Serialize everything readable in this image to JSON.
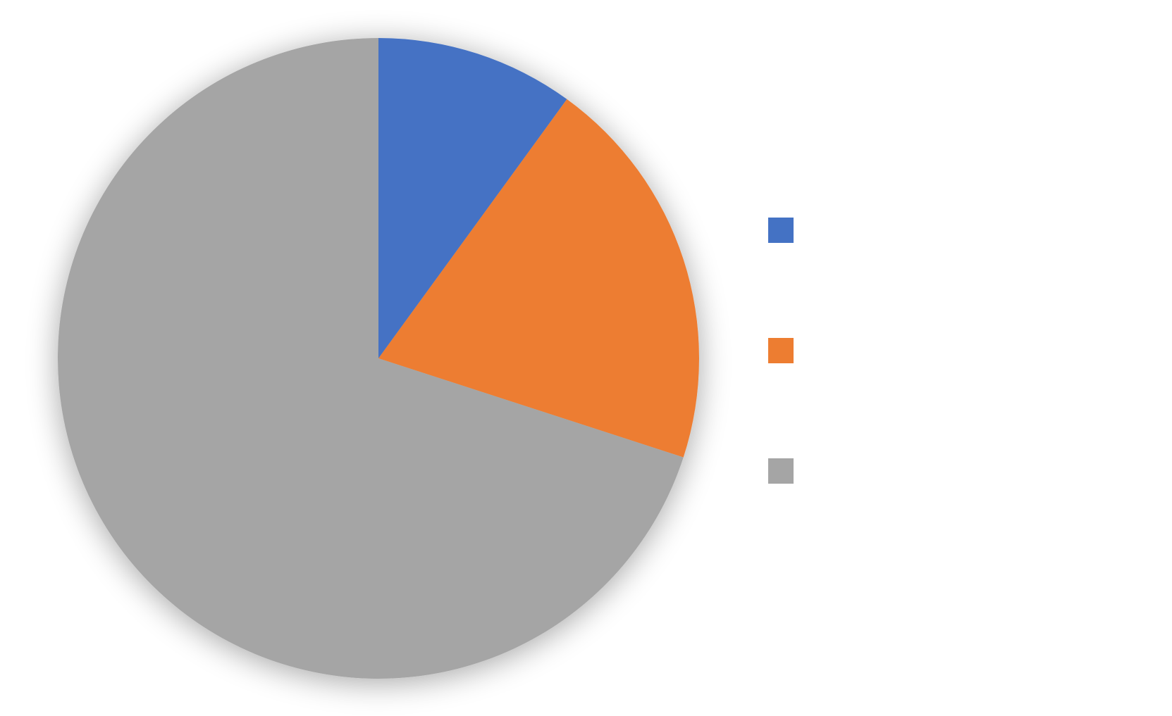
{
  "chart_data": {
    "type": "pie",
    "title": "",
    "start_angle_deg": 0,
    "direction": "clockwise",
    "legend_position": "right",
    "labels": [
      "",
      "",
      ""
    ],
    "values": [
      10,
      20,
      70
    ],
    "colors": [
      "#4472C4",
      "#ED7D31",
      "#A5A5A5"
    ]
  }
}
